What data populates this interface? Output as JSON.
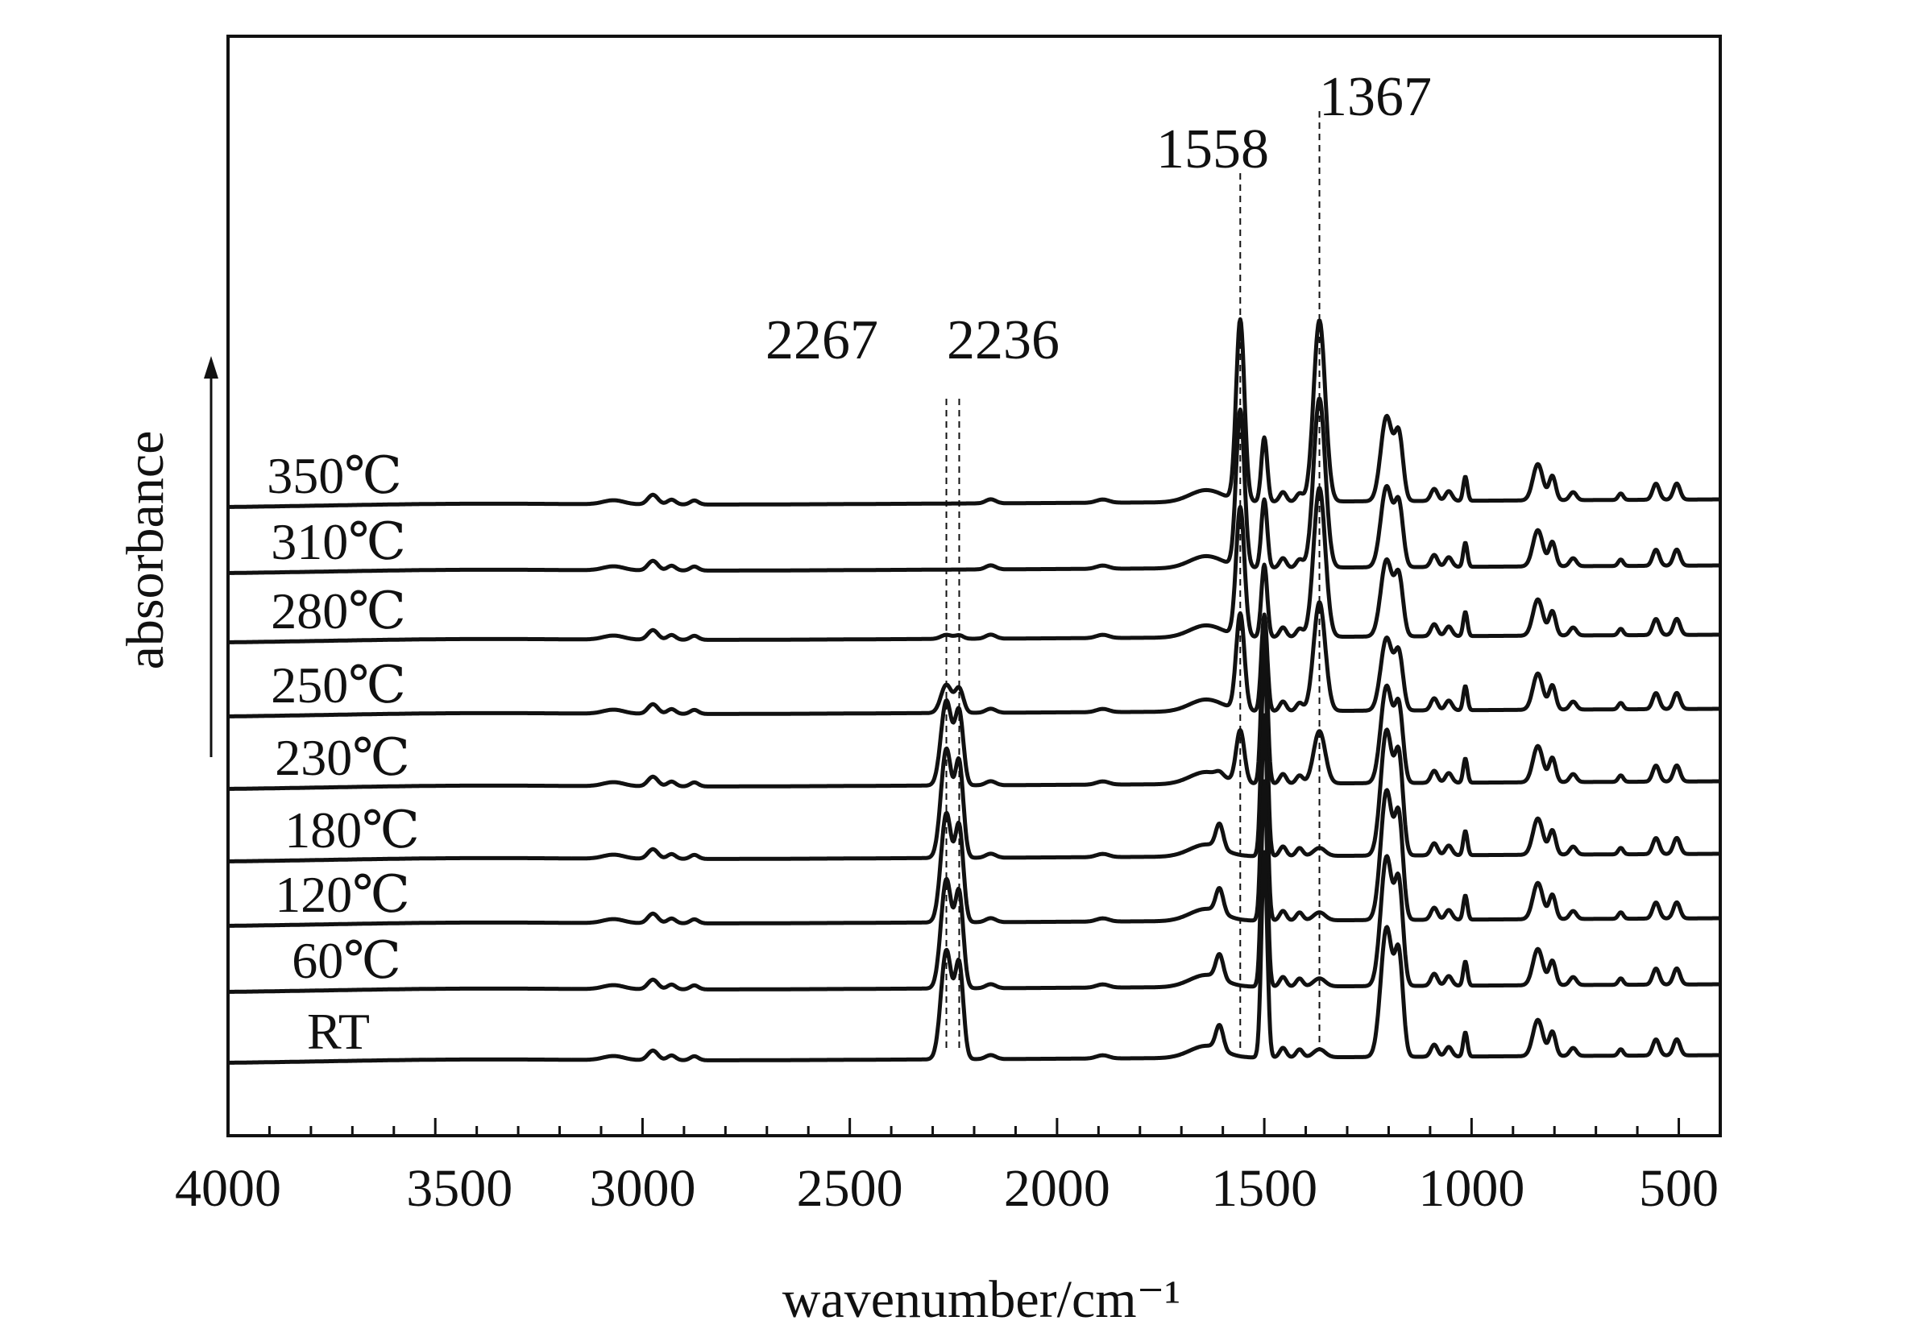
{
  "chart_data": {
    "type": "line",
    "title": "",
    "xlabel": "wavenumber/cm⁻¹",
    "ylabel": "absorbance",
    "xlim": [
      4000,
      400
    ],
    "x_reversed": true,
    "y_ticks_shown": false,
    "grid": false,
    "legend": "inline labels at left of each trace",
    "x_ticks": [
      "4000",
      "3500",
      "3000",
      "2500",
      "2000",
      "1500",
      "1000",
      "500"
    ],
    "x_tick_values": [
      4000,
      3500,
      3000,
      2500,
      2000,
      1500,
      1000,
      500
    ],
    "annotations": [
      {
        "text": "2267",
        "x": 2267
      },
      {
        "text": "2236",
        "x": 2236
      },
      {
        "text": "1558",
        "x": 1558
      },
      {
        "text": "1367",
        "x": 1367
      }
    ],
    "series": [
      {
        "name": "350℃",
        "baseline": 0.0,
        "nitrile": 0.0,
        "h1558": 2.25,
        "h1367": 2.25,
        "h1500": 0.8,
        "h1200": 1.05,
        "h1600": 0.0
      },
      {
        "name": "310℃",
        "baseline": 0.0,
        "nitrile": 0.0,
        "h1558": 1.95,
        "h1367": 2.1,
        "h1500": 0.85,
        "h1200": 1.0,
        "h1600": 0.0
      },
      {
        "name": "280℃",
        "baseline": 0.0,
        "nitrile": 0.05,
        "h1558": 1.6,
        "h1367": 1.85,
        "h1500": 0.9,
        "h1200": 0.95,
        "h1600": 0.0
      },
      {
        "name": "250℃",
        "baseline": 0.0,
        "nitrile": 0.35,
        "h1558": 1.2,
        "h1367": 1.35,
        "h1500": 1.2,
        "h1200": 0.9,
        "h1600": 0.0
      },
      {
        "name": "230℃",
        "baseline": 0.0,
        "nitrile": 1.05,
        "h1558": 0.65,
        "h1367": 0.65,
        "h1500": 2.0,
        "h1200": 1.2,
        "h1600": 0.05
      },
      {
        "name": "180℃",
        "baseline": 0.0,
        "nitrile": 1.35,
        "h1558": 0.0,
        "h1367": 0.1,
        "h1500": 2.55,
        "h1200": 1.55,
        "h1600": 0.3
      },
      {
        "name": "120℃",
        "baseline": 0.0,
        "nitrile": 1.35,
        "h1558": 0.0,
        "h1367": 0.1,
        "h1500": 2.55,
        "h1200": 1.6,
        "h1600": 0.3
      },
      {
        "name": "60℃",
        "baseline": 0.0,
        "nitrile": 1.35,
        "h1558": 0.0,
        "h1367": 0.1,
        "h1500": 2.55,
        "h1200": 1.6,
        "h1600": 0.3
      },
      {
        "name": "RT",
        "baseline": 0.0,
        "nitrile": 1.35,
        "h1558": 0.0,
        "h1367": 0.1,
        "h1500": 2.55,
        "h1200": 1.6,
        "h1600": 0.3
      }
    ]
  }
}
